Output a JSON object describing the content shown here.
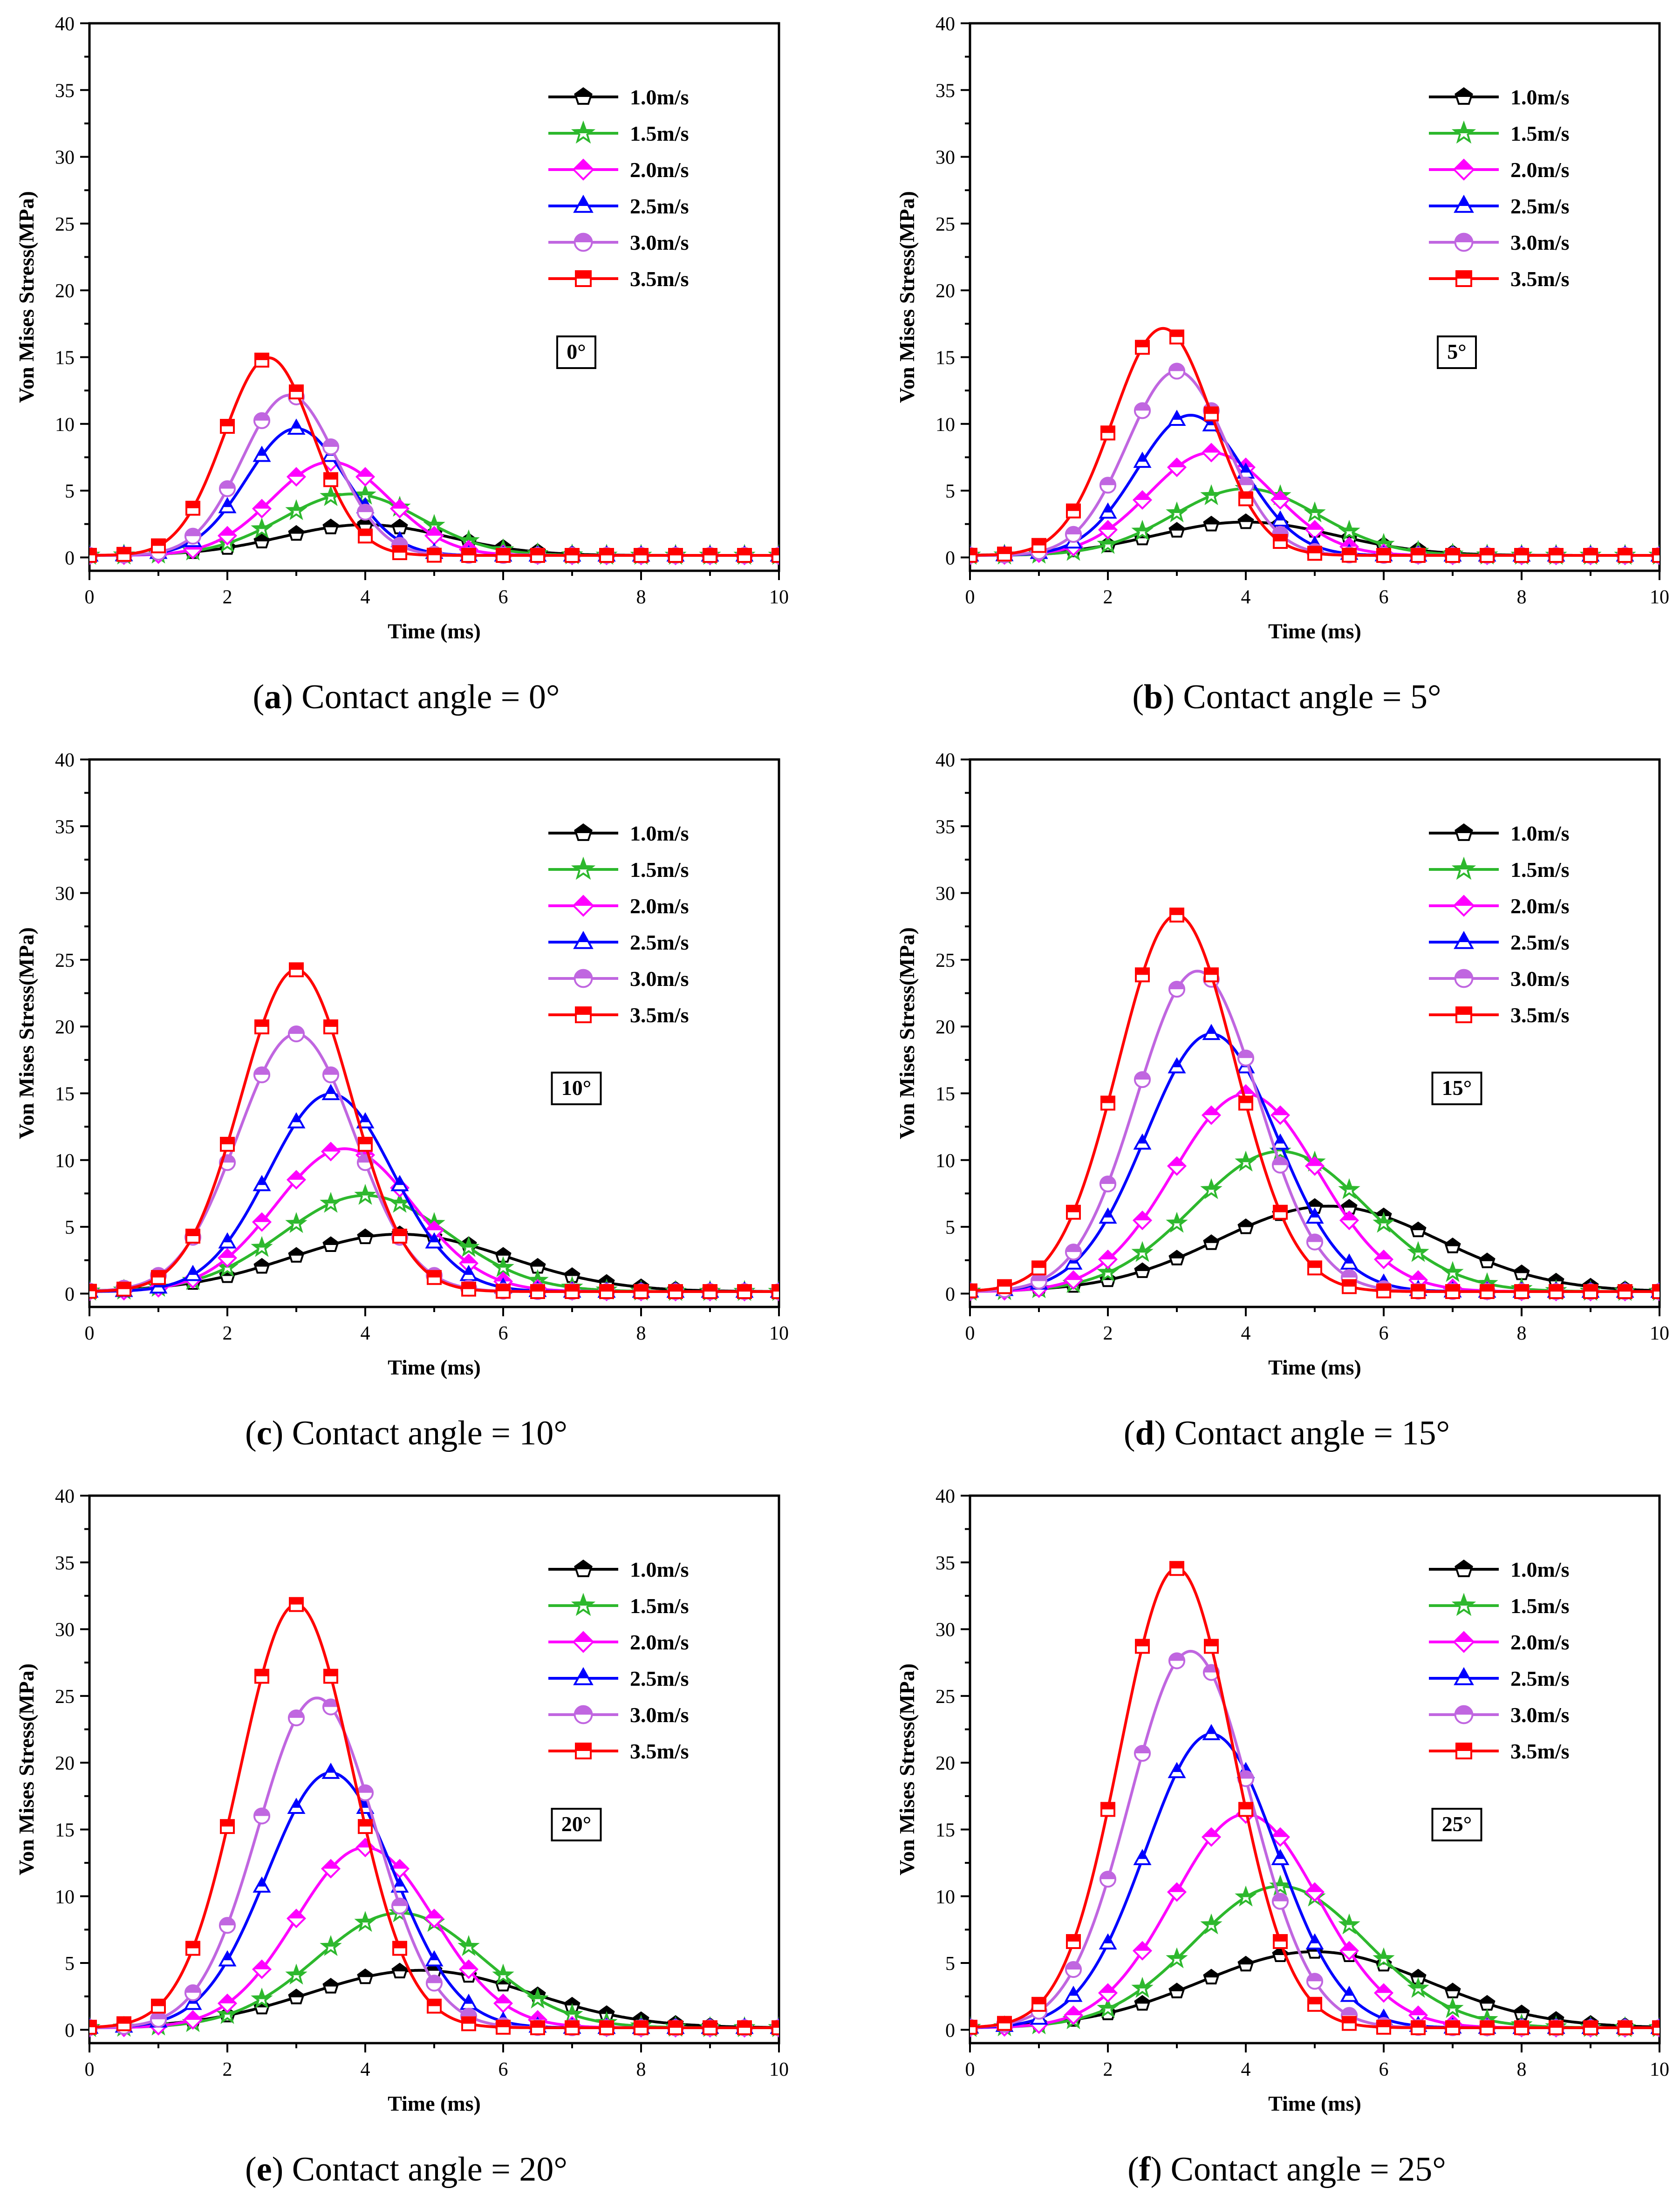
{
  "axis": {
    "xlabel": "Time (ms)",
    "ylabel": "Von Mises Stress(MPa)",
    "xlim": [
      0,
      10
    ],
    "ylim": [
      -1,
      40
    ],
    "xticks": [
      0,
      2,
      4,
      6,
      8,
      10
    ],
    "yticks": [
      0,
      5,
      10,
      15,
      20,
      25,
      30,
      35,
      40
    ]
  },
  "legend": {
    "placement": "top-right",
    "entries": [
      {
        "label": "1.0m/s",
        "color": "#000000",
        "marker": "pentagon"
      },
      {
        "label": "1.5m/s",
        "color": "#2db82d",
        "marker": "star"
      },
      {
        "label": "2.0m/s",
        "color": "#ff00ff",
        "marker": "diamond"
      },
      {
        "label": "2.5m/s",
        "color": "#0000ff",
        "marker": "triangle"
      },
      {
        "label": "3.0m/s",
        "color": "#c066e0",
        "marker": "circle"
      },
      {
        "label": "3.5m/s",
        "color": "#ff0000",
        "marker": "square"
      }
    ]
  },
  "chart_data": [
    {
      "type": "line",
      "panel": "a",
      "angle_label": "0°",
      "caption_letter": "a",
      "caption_text": "Contact angle = 0°",
      "xlabel": "Time (ms)",
      "ylabel": "Von Mises Stress(MPa)",
      "xlim": [
        0,
        10
      ],
      "ylim": [
        -1,
        40
      ],
      "series": [
        {
          "name": "1.0m/s",
          "peak": 2.3,
          "peak_time": 4.0,
          "spread": 1.2
        },
        {
          "name": "1.5m/s",
          "peak": 4.6,
          "peak_time": 3.8,
          "spread": 1.0
        },
        {
          "name": "2.0m/s",
          "peak": 7.0,
          "peak_time": 3.5,
          "spread": 0.85
        },
        {
          "name": "2.5m/s",
          "peak": 9.5,
          "peak_time": 3.0,
          "spread": 0.72
        },
        {
          "name": "3.0m/s",
          "peak": 12.0,
          "peak_time": 2.9,
          "spread": 0.68
        },
        {
          "name": "3.5m/s",
          "peak": 14.8,
          "peak_time": 2.6,
          "spread": 0.65
        }
      ]
    },
    {
      "type": "line",
      "panel": "b",
      "angle_label": "5°",
      "caption_letter": "b",
      "caption_text": "Contact angle = 5°",
      "xlabel": "Time (ms)",
      "ylabel": "Von Mises Stress(MPa)",
      "xlim": [
        0,
        10
      ],
      "ylim": [
        -1,
        40
      ],
      "series": [
        {
          "name": "1.0m/s",
          "peak": 2.5,
          "peak_time": 4.0,
          "spread": 1.3
        },
        {
          "name": "1.5m/s",
          "peak": 5.0,
          "peak_time": 4.0,
          "spread": 1.05
        },
        {
          "name": "2.0m/s",
          "peak": 7.7,
          "peak_time": 3.5,
          "spread": 0.9
        },
        {
          "name": "2.5m/s",
          "peak": 10.5,
          "peak_time": 3.2,
          "spread": 0.78
        },
        {
          "name": "3.0m/s",
          "peak": 13.8,
          "peak_time": 3.0,
          "spread": 0.72
        },
        {
          "name": "3.5m/s",
          "peak": 17.0,
          "peak_time": 2.8,
          "spread": 0.72
        }
      ]
    },
    {
      "type": "line",
      "panel": "c",
      "angle_label": "10°",
      "caption_letter": "c",
      "caption_text": "Contact angle = 10°",
      "xlabel": "Time (ms)",
      "ylabel": "Von Mises Stress(MPa)",
      "xlim": [
        0,
        10
      ],
      "ylim": [
        -1,
        40
      ],
      "series": [
        {
          "name": "1.0m/s",
          "peak": 4.3,
          "peak_time": 4.5,
          "spread": 1.55
        },
        {
          "name": "1.5m/s",
          "peak": 7.2,
          "peak_time": 4.0,
          "spread": 1.2
        },
        {
          "name": "2.0m/s",
          "peak": 10.7,
          "peak_time": 3.7,
          "spread": 1.0
        },
        {
          "name": "2.5m/s",
          "peak": 14.8,
          "peak_time": 3.5,
          "spread": 0.9
        },
        {
          "name": "3.0m/s",
          "peak": 19.3,
          "peak_time": 3.0,
          "spread": 0.85
        },
        {
          "name": "3.5m/s",
          "peak": 24.1,
          "peak_time": 3.0,
          "spread": 0.8
        }
      ]
    },
    {
      "type": "line",
      "panel": "d",
      "angle_label": "15°",
      "caption_letter": "d",
      "caption_text": "Contact angle = 15°",
      "xlabel": "Time (ms)",
      "ylabel": "Von Mises Stress(MPa)",
      "xlim": [
        0,
        10
      ],
      "ylim": [
        -1,
        40
      ],
      "series": [
        {
          "name": "1.0m/s",
          "peak": 6.4,
          "peak_time": 5.2,
          "spread": 1.6
        },
        {
          "name": "1.5m/s",
          "peak": 10.5,
          "peak_time": 4.5,
          "spread": 1.25
        },
        {
          "name": "2.0m/s",
          "peak": 14.8,
          "peak_time": 4.0,
          "spread": 1.05
        },
        {
          "name": "2.5m/s",
          "peak": 19.3,
          "peak_time": 3.5,
          "spread": 0.95
        },
        {
          "name": "3.0m/s",
          "peak": 24.0,
          "peak_time": 3.3,
          "spread": 0.88
        },
        {
          "name": "3.5m/s",
          "peak": 28.2,
          "peak_time": 3.0,
          "spread": 0.85
        }
      ]
    },
    {
      "type": "line",
      "panel": "e",
      "angle_label": "20°",
      "caption_letter": "e",
      "caption_text": "Contact angle = 20°",
      "xlabel": "Time (ms)",
      "ylabel": "Von Mises Stress(MPa)",
      "xlim": [
        0,
        10
      ],
      "ylim": [
        -1,
        40
      ],
      "series": [
        {
          "name": "1.0m/s",
          "peak": 4.3,
          "peak_time": 4.8,
          "spread": 1.6
        },
        {
          "name": "1.5m/s",
          "peak": 8.6,
          "peak_time": 4.5,
          "spread": 1.2
        },
        {
          "name": "2.0m/s",
          "peak": 13.5,
          "peak_time": 4.0,
          "spread": 1.0
        },
        {
          "name": "2.5m/s",
          "peak": 19.1,
          "peak_time": 3.5,
          "spread": 0.92
        },
        {
          "name": "3.0m/s",
          "peak": 24.7,
          "peak_time": 3.3,
          "spread": 0.85
        },
        {
          "name": "3.5m/s",
          "peak": 31.7,
          "peak_time": 3.0,
          "spread": 0.82
        }
      ]
    },
    {
      "type": "line",
      "panel": "f",
      "angle_label": "25°",
      "caption_letter": "f",
      "caption_text": "Contact angle = 25°",
      "xlabel": "Time (ms)",
      "ylabel": "Von Mises Stress(MPa)",
      "xlim": [
        0,
        10
      ],
      "ylim": [
        -1,
        40
      ],
      "series": [
        {
          "name": "1.0m/s",
          "peak": 5.7,
          "peak_time": 5.0,
          "spread": 1.65
        },
        {
          "name": "1.5m/s",
          "peak": 10.6,
          "peak_time": 4.5,
          "spread": 1.25
        },
        {
          "name": "2.0m/s",
          "peak": 16.0,
          "peak_time": 4.0,
          "spread": 1.05
        },
        {
          "name": "2.5m/s",
          "peak": 22.0,
          "peak_time": 3.5,
          "spread": 0.95
        },
        {
          "name": "3.0m/s",
          "peak": 28.2,
          "peak_time": 3.2,
          "spread": 0.88
        },
        {
          "name": "3.5m/s",
          "peak": 34.4,
          "peak_time": 3.0,
          "spread": 0.82
        }
      ]
    }
  ]
}
